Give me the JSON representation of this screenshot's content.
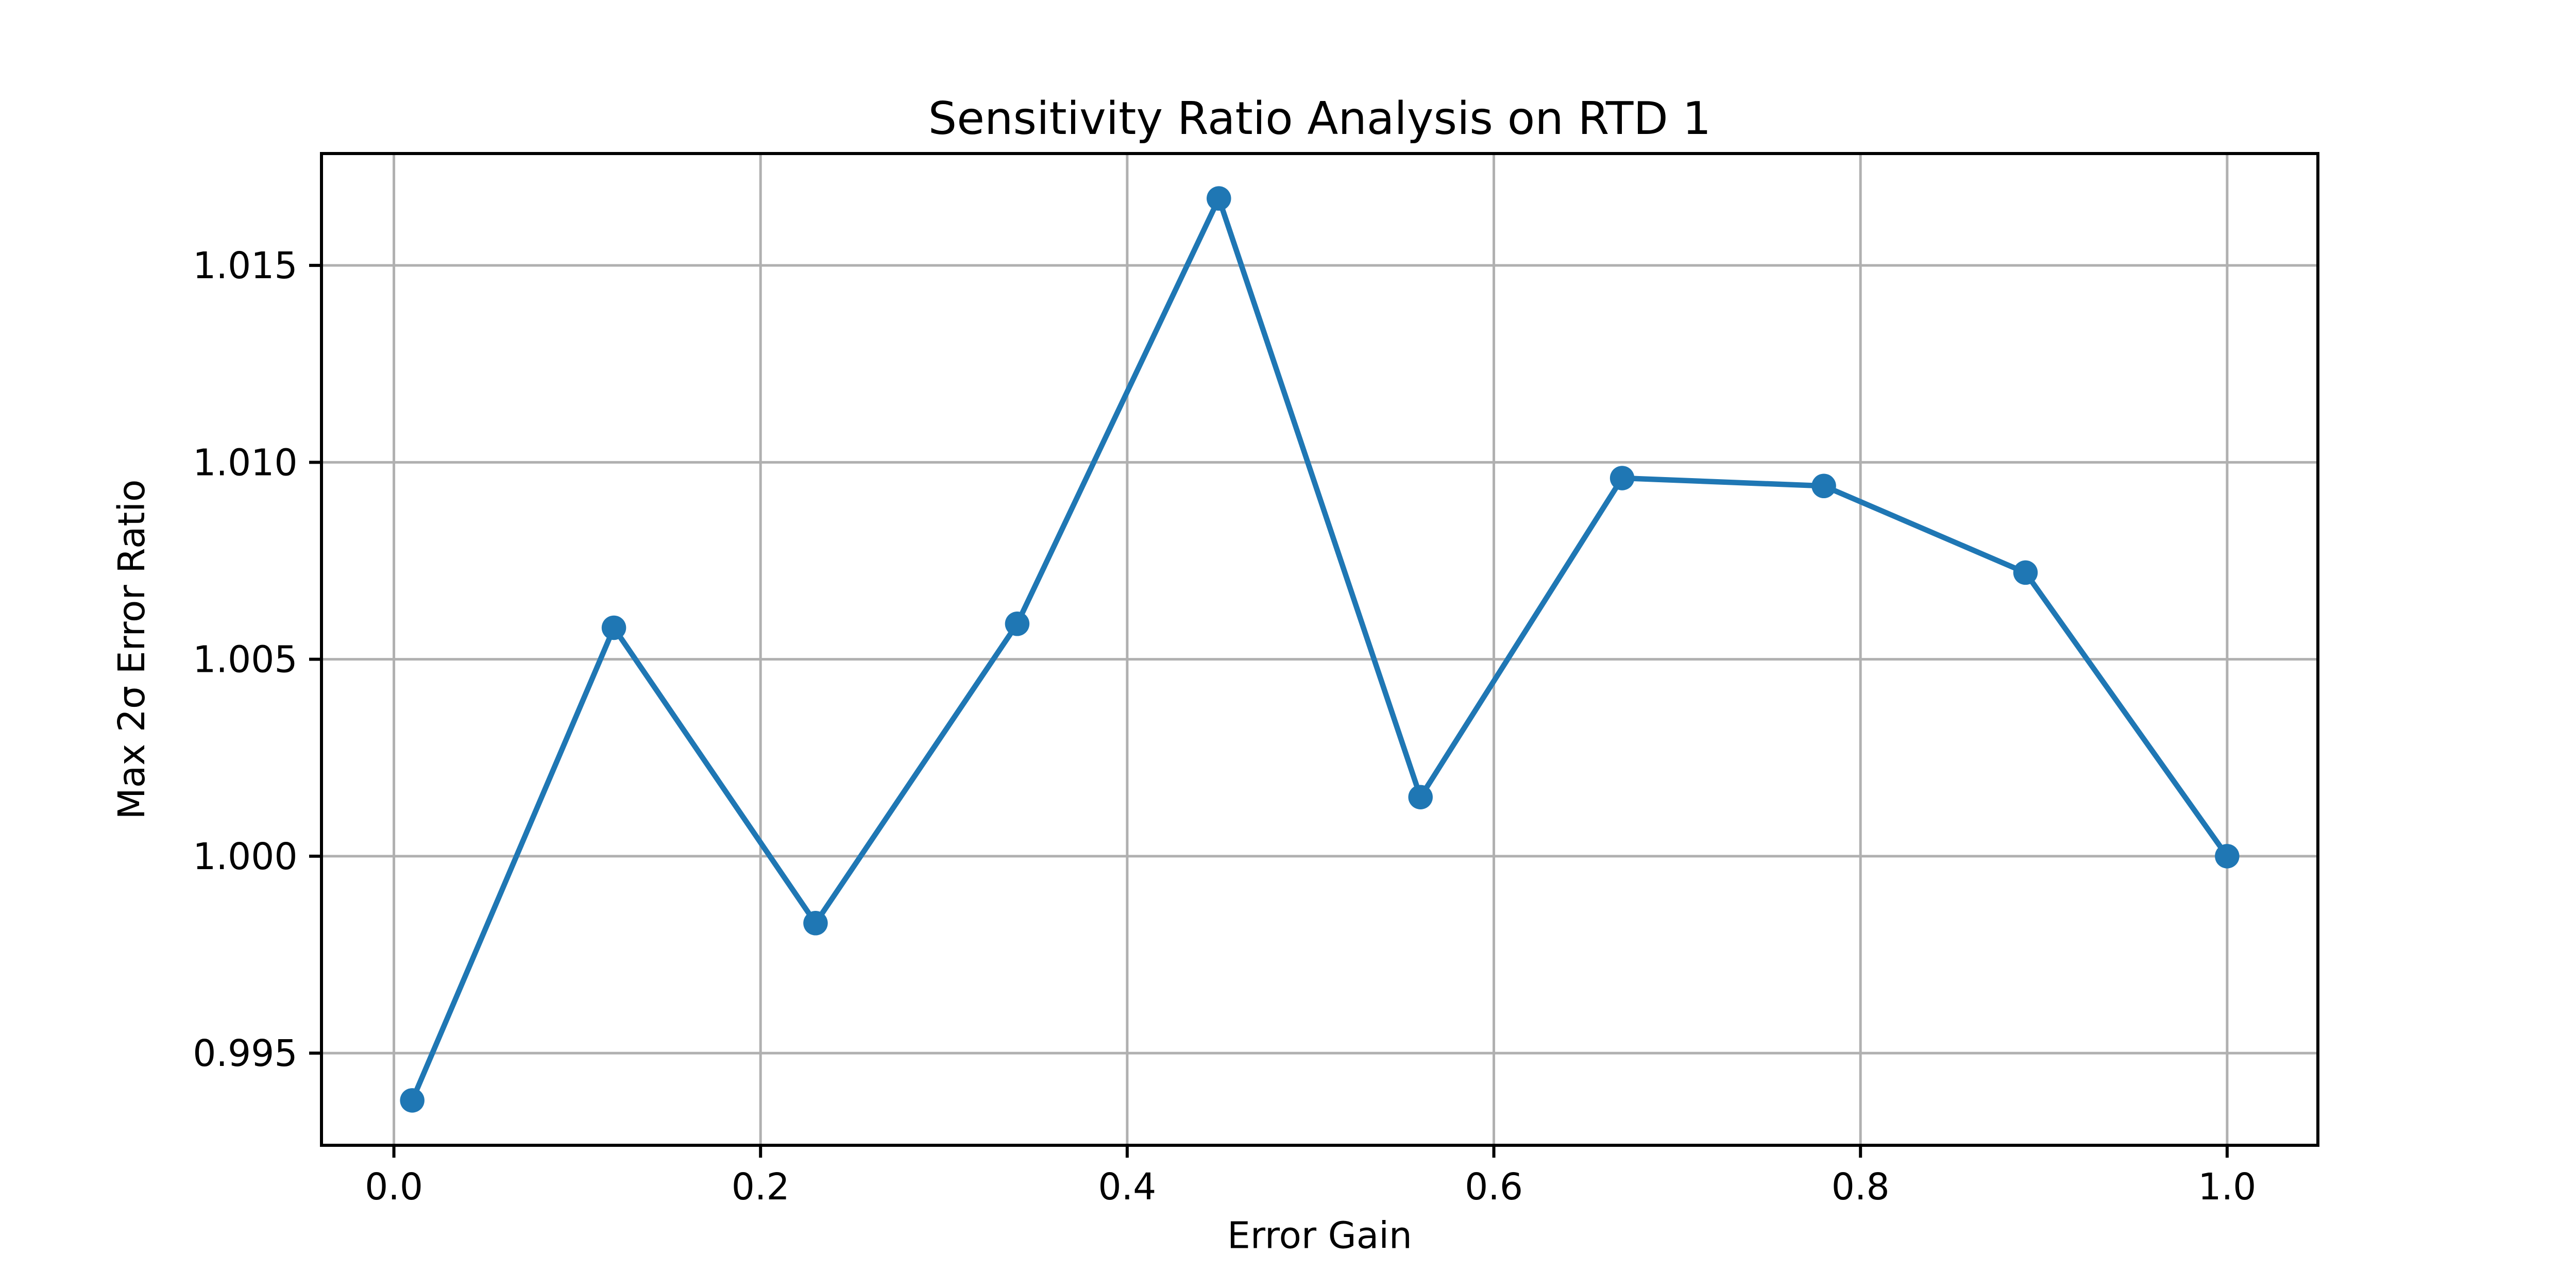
{
  "figure": {
    "background_color": "#ffffff",
    "text_color": "#000000",
    "spine_color": "#000000"
  },
  "chart_data": {
    "type": "line",
    "title": "Sensitivity Ratio Analysis on RTD 1",
    "xlabel": "Error Gain",
    "ylabel": "Max 2σ Error Ratio",
    "x": [
      0.01,
      0.12,
      0.23,
      0.34,
      0.45,
      0.56,
      0.67,
      0.78,
      0.89,
      1.0
    ],
    "y": [
      0.9938,
      1.0058,
      0.9983,
      1.0059,
      1.0167,
      1.0015,
      1.0096,
      1.0094,
      1.0072,
      1.0
    ],
    "xlim": [
      -0.0395,
      1.0495
    ],
    "ylim": [
      0.99266,
      1.01784
    ],
    "xticks": [
      0.0,
      0.2,
      0.4,
      0.6,
      0.8,
      1.0
    ],
    "xtick_labels": [
      "0.0",
      "0.2",
      "0.4",
      "0.6",
      "0.8",
      "1.0"
    ],
    "yticks": [
      0.995,
      1.0,
      1.005,
      1.01,
      1.015
    ],
    "ytick_labels": [
      "0.995",
      "1.000",
      "1.005",
      "1.010",
      "1.015"
    ],
    "grid": true,
    "legend_position": "none",
    "line_color": "#1f77b4",
    "marker": "o",
    "marker_color": "#1f77b4",
    "grid_color": "#b0b0b0"
  }
}
